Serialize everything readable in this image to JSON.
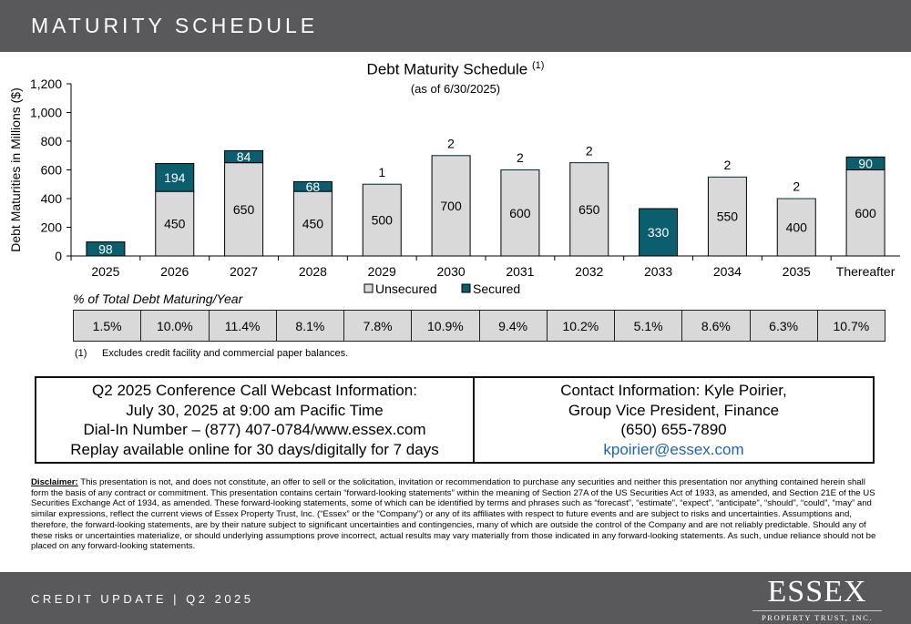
{
  "header": {
    "title": "MATURITY SCHEDULE"
  },
  "chart_data": {
    "type": "bar",
    "stacked": true,
    "title": "Debt Maturity Schedule",
    "title_superscript": "(1)",
    "subtitle": "(as of 6/30/2025)",
    "ylabel": "Debt Maturities in Millions ($)",
    "ylim": [
      0,
      1200
    ],
    "yticks": [
      "0",
      "200",
      "400",
      "600",
      "800",
      "1,000",
      "1,200"
    ],
    "ytick_values": [
      0,
      200,
      400,
      600,
      800,
      1000,
      1200
    ],
    "categories": [
      "2025",
      "2026",
      "2027",
      "2028",
      "2029",
      "2030",
      "2031",
      "2032",
      "2033",
      "2034",
      "2035",
      "Thereafter"
    ],
    "series": [
      {
        "name": "Unsecured",
        "color": "#d9d9d9",
        "values": [
          0,
          450,
          650,
          450,
          500,
          700,
          600,
          650,
          0,
          550,
          400,
          600
        ]
      },
      {
        "name": "Secured",
        "color": "#0a5e6e",
        "values": [
          98,
          194,
          84,
          68,
          1,
          2,
          2,
          2,
          330,
          2,
          2,
          90
        ]
      }
    ],
    "legend_position": "bottom",
    "grid": false
  },
  "pct_table": {
    "title": "% of Total Debt Maturing/Year",
    "values": [
      "1.5%",
      "10.0%",
      "11.4%",
      "8.1%",
      "7.8%",
      "10.9%",
      "9.4%",
      "10.2%",
      "5.1%",
      "8.6%",
      "6.3%",
      "10.7%"
    ]
  },
  "footnote": {
    "number": "(1)",
    "text": "Excludes credit facility and commercial paper balances."
  },
  "webcast": {
    "line1": "Q2 2025 Conference Call Webcast Information:",
    "line2": "July 30, 2025 at 9:00 am Pacific Time",
    "line3": "Dial-In Number – (877) 407-0784/www.essex.com",
    "line4": "Replay available online for 30 days/digitally for 7 days"
  },
  "contact": {
    "line1": "Contact Information: Kyle Poirier,",
    "line2": "Group Vice President, Finance",
    "phone": "(650) 655-7890",
    "email": "kpoirier@essex.com"
  },
  "disclaimer": {
    "label": "Disclaimer:",
    "text": "This presentation is not, and does not constitute, an offer to sell or the solicitation, invitation or recommendation to purchase any securities and neither this presentation nor anything contained herein shall form the basis of any contract or commitment. This presentation contains certain “forward-looking statements” within the meaning of Section 27A of the US Securities Act of 1933, as amended, and Section 21E of the US Securities Exchange Act of 1934, as amended. These forward-looking statements, some of which can be identified by terms and phrases such as “forecast”, “estimate”, “expect”, “anticipate”, “should”, “could”, “may” and similar expressions, reflect the current views of Essex Property Trust, Inc. (“Essex” or the “Company”) or any of its affiliates with respect to future events and are subject to risks and uncertainties. Assumptions and, therefore, the forward-looking statements, are by their nature subject to significant uncertainties and contingencies, many of which are outside the control of the Company and are not reliably predictable. Should any of these risks or uncertainties materialize, or should underlying assumptions prove incorrect, actual results may vary materially from those indicated in any forward-looking statements. As such, undue reliance should not be placed on any forward-looking statements."
  },
  "footer": {
    "text": "CREDIT UPDATE | Q2 2025",
    "logo_main": "ESSEX",
    "logo_sub": "PROPERTY TRUST, INC."
  }
}
